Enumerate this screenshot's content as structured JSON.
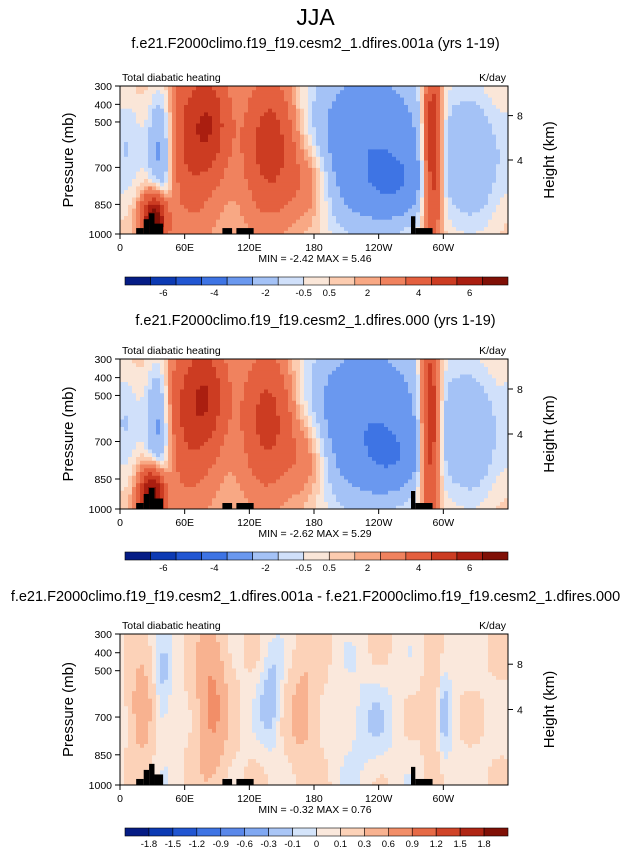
{
  "main_title": "JJA",
  "chart_data": [
    {
      "type": "heatmap",
      "title": "f.e21.F2000climo.f19_f19.cesm2_1.dfires.001a (yrs 1-19)",
      "left_label": "Total diabatic heating",
      "right_label": "K/day",
      "ylabel": "Pressure (mb)",
      "ylabel_right": "Height (km)",
      "x_ticks": [
        "0",
        "60E",
        "120E",
        "180",
        "120W",
        "60W"
      ],
      "y_ticks": [
        "300",
        "400",
        "500",
        "700",
        "850",
        "1000"
      ],
      "y_right_ticks": [
        "8",
        "4"
      ],
      "stats": "MIN = -2.42   MAX =  5.46",
      "colorbar_labels": [
        "-6",
        "-4",
        "-2",
        "-0.5",
        "0.5",
        "2",
        "4",
        "6"
      ],
      "colorbar_colors": [
        "#051c85",
        "#0c3ab3",
        "#2156d2",
        "#3e74e4",
        "#6a98ef",
        "#a4c2f6",
        "#d0e0fa",
        "#fae6d8",
        "#fcccb0",
        "#f8a884",
        "#f0825e",
        "#e4603f",
        "#cc3c22",
        "#aa1e10",
        "#801006"
      ],
      "value_range": [
        -2.42,
        5.46
      ]
    },
    {
      "type": "heatmap",
      "title": "f.e21.F2000climo.f19_f19.cesm2_1.dfires.000 (yrs 1-19)",
      "left_label": "Total diabatic heating",
      "right_label": "K/day",
      "ylabel": "Pressure (mb)",
      "ylabel_right": "Height (km)",
      "x_ticks": [
        "0",
        "60E",
        "120E",
        "180",
        "120W",
        "60W"
      ],
      "y_ticks": [
        "300",
        "400",
        "500",
        "700",
        "850",
        "1000"
      ],
      "y_right_ticks": [
        "8",
        "4"
      ],
      "stats": "MIN = -2.62   MAX =  5.29",
      "colorbar_labels": [
        "-6",
        "-4",
        "-2",
        "-0.5",
        "0.5",
        "2",
        "4",
        "6"
      ],
      "colorbar_colors": [
        "#051c85",
        "#0c3ab3",
        "#2156d2",
        "#3e74e4",
        "#6a98ef",
        "#a4c2f6",
        "#d0e0fa",
        "#fae6d8",
        "#fcccb0",
        "#f8a884",
        "#f0825e",
        "#e4603f",
        "#cc3c22",
        "#aa1e10",
        "#801006"
      ],
      "value_range": [
        -2.62,
        5.29
      ]
    },
    {
      "type": "heatmap",
      "title": "f.e21.F2000climo.f19_f19.cesm2_1.dfires.001a - f.e21.F2000climo.f19_f19.cesm2_1.dfires.000",
      "left_label": "Total diabatic heating",
      "right_label": "K/day",
      "ylabel": "Pressure (mb)",
      "ylabel_right": "Height (km)",
      "x_ticks": [
        "0",
        "60E",
        "120E",
        "180",
        "120W",
        "60W"
      ],
      "y_ticks": [
        "300",
        "400",
        "500",
        "700",
        "850",
        "1000"
      ],
      "y_right_ticks": [
        "8",
        "4"
      ],
      "stats": "MIN = -0.32   MAX =  0.76",
      "colorbar_labels": [
        "-1.8",
        "-1.5",
        "-1.2",
        "-0.9",
        "-0.6",
        "-0.3",
        "-0.1",
        "0",
        "0.1",
        "0.3",
        "0.6",
        "0.9",
        "1.2",
        "1.5",
        "1.8"
      ],
      "colorbar_colors": [
        "#051c85",
        "#0c3ab3",
        "#2156d2",
        "#3e74e4",
        "#5a88ea",
        "#80a8f2",
        "#aac6f6",
        "#d4e4fa",
        "#fae8dc",
        "#fcd2b8",
        "#f8b290",
        "#f28e68",
        "#e66a46",
        "#d04428",
        "#b02614",
        "#801006"
      ],
      "value_range": [
        -0.32,
        0.76
      ]
    }
  ]
}
